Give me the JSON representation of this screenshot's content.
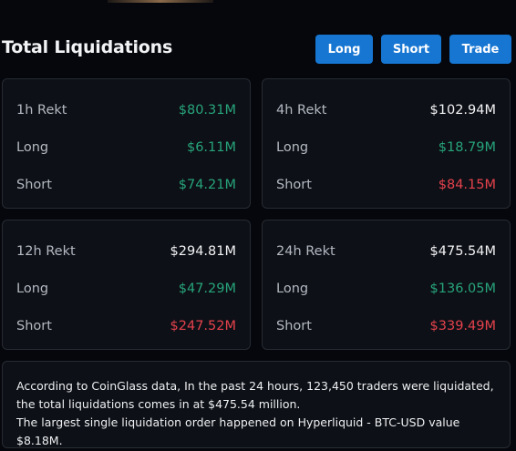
{
  "header": {
    "title": "Total Liquidations",
    "buttons": {
      "long": "Long",
      "short": "Short",
      "trade": "Trade"
    }
  },
  "cards": [
    {
      "period_label": "1h Rekt",
      "total": "$80.31M",
      "total_color": "green",
      "long_label": "Long",
      "long_value": "$6.11M",
      "short_label": "Short",
      "short_value": "$74.21M",
      "short_color": "green"
    },
    {
      "period_label": "4h Rekt",
      "total": "$102.94M",
      "total_color": "white",
      "long_label": "Long",
      "long_value": "$18.79M",
      "short_label": "Short",
      "short_value": "$84.15M",
      "short_color": "red"
    },
    {
      "period_label": "12h Rekt",
      "total": "$294.81M",
      "total_color": "white",
      "long_label": "Long",
      "long_value": "$47.29M",
      "short_label": "Short",
      "short_value": "$247.52M",
      "short_color": "red"
    },
    {
      "period_label": "24h Rekt",
      "total": "$475.54M",
      "total_color": "white",
      "long_label": "Long",
      "long_value": "$136.05M",
      "short_label": "Short",
      "short_value": "$339.49M",
      "short_color": "red"
    }
  ],
  "colors": {
    "accent_button": "#1676d2",
    "green": "#27a47b",
    "red": "#e5424d",
    "card_bg": "#0d1016",
    "page_bg": "#05070c"
  },
  "summary": {
    "line1": "According to CoinGlass data, In the past 24 hours, 123,450 traders were liquidated, the total liquidations comes in at $475.54 million.",
    "line2": "The largest single liquidation order happened on Hyperliquid - BTC-USD value $8.18M."
  }
}
